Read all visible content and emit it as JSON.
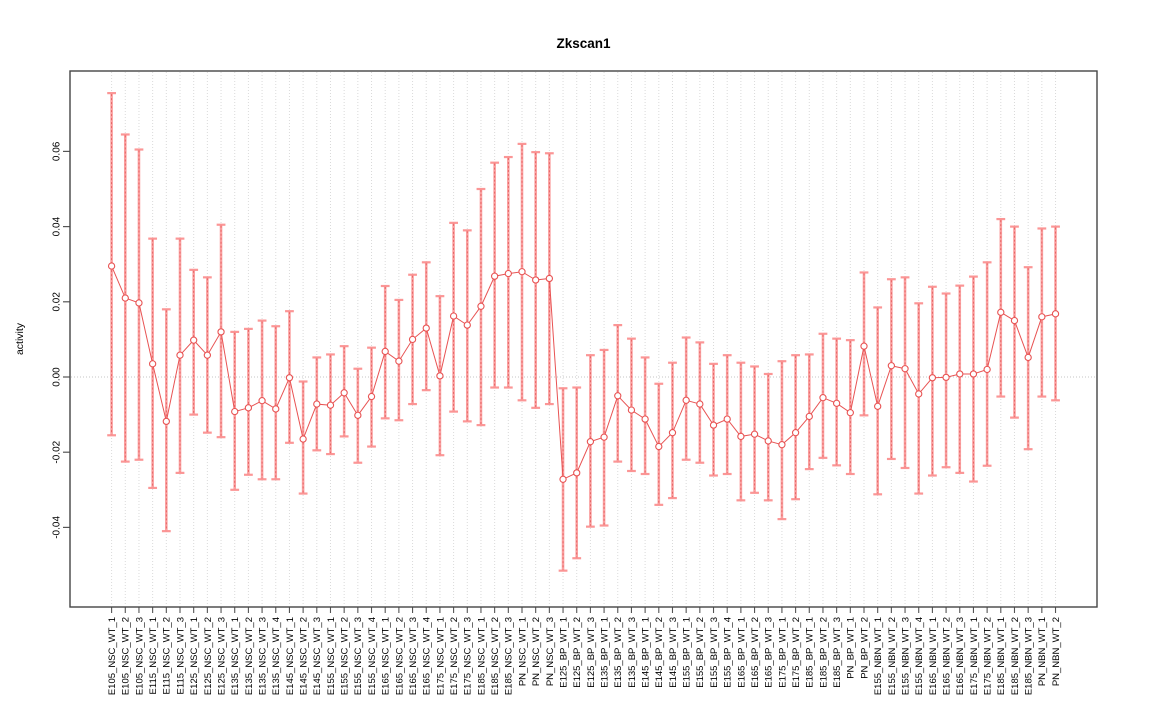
{
  "chart_data": {
    "type": "line",
    "title": "Zkscan1",
    "ylabel": "activity",
    "xlabel": "",
    "has_error_bars": true,
    "point_style": "open-circle",
    "grid": "vertical-dotted-per-category",
    "zero_reference_line": true,
    "legend": "none",
    "ylim": [
      -0.055,
      0.078
    ],
    "yticks": [
      0.06,
      0.04,
      0.02,
      0.0,
      -0.02,
      -0.04
    ],
    "ytick_labels": [
      "0.06",
      "0.04",
      "0.02",
      "0.00",
      "-0.02",
      "-0.04"
    ],
    "categories": [
      "E105_NSC_WT_1",
      "E105_NSC_WT_2",
      "E105_NSC_WT_3",
      "E115_NSC_WT_1",
      "E115_NSC_WT_2",
      "E115_NSC_WT_3",
      "E125_NSC_WT_1",
      "E125_NSC_WT_2",
      "E125_NSC_WT_3",
      "E135_NSC_WT_1",
      "E135_NSC_WT_2",
      "E135_NSC_WT_3",
      "E135_NSC_WT_4",
      "E145_NSC_WT_1",
      "E145_NSC_WT_2",
      "E145_NSC_WT_3",
      "E155_NSC_WT_1",
      "E155_NSC_WT_2",
      "E155_NSC_WT_3",
      "E155_NSC_WT_4",
      "E165_NSC_WT_1",
      "E165_NSC_WT_2",
      "E165_NSC_WT_3",
      "E165_NSC_WT_4",
      "E175_NSC_WT_1",
      "E175_NSC_WT_2",
      "E175_NSC_WT_3",
      "E185_NSC_WT_1",
      "E185_NSC_WT_2",
      "E185_NSC_WT_3",
      "PN_NSC_WT_1",
      "PN_NSC_WT_2",
      "PN_NSC_WT_3",
      "E125_BP_WT_1",
      "E125_BP_WT_2",
      "E125_BP_WT_3",
      "E135_BP_WT_1",
      "E135_BP_WT_2",
      "E135_BP_WT_3",
      "E145_BP_WT_1",
      "E145_BP_WT_2",
      "E145_BP_WT_3",
      "E155_BP_WT_1",
      "E155_BP_WT_2",
      "E155_BP_WT_3",
      "E155_BP_WT_4",
      "E165_BP_WT_1",
      "E165_BP_WT_2",
      "E165_BP_WT_3",
      "E175_BP_WT_1",
      "E175_BP_WT_2",
      "E185_BP_WT_1",
      "E185_BP_WT_2",
      "E185_BP_WT_3",
      "PN_BP_WT_1",
      "PN_BP_WT_2",
      "E155_NBN_WT_1",
      "E155_NBN_WT_2",
      "E155_NBN_WT_3",
      "E155_NBN_WT_4",
      "E165_NBN_WT_1",
      "E165_NBN_WT_2",
      "E165_NBN_WT_3",
      "E175_NBN_WT_1",
      "E175_NBN_WT_2",
      "E185_NBN_WT_1",
      "E185_NBN_WT_2",
      "E185_NBN_WT_3",
      "PN_NBN_WT_1",
      "PN_NBN_WT_2"
    ],
    "series": [
      {
        "name": "activity",
        "values": [
          0.0295,
          0.021,
          0.0197,
          0.0035,
          -0.0118,
          0.0058,
          0.0098,
          0.0058,
          0.012,
          -0.0092,
          -0.0082,
          -0.0063,
          -0.0085,
          -0.0002,
          -0.0165,
          -0.0072,
          -0.0075,
          -0.0042,
          -0.0102,
          -0.0052,
          0.0068,
          0.0042,
          0.01,
          0.013,
          0.0003,
          0.0162,
          0.0138,
          0.0188,
          0.0268,
          0.0275,
          0.028,
          0.0258,
          0.0262,
          -0.0272,
          -0.0255,
          -0.0172,
          -0.016,
          -0.005,
          -0.0088,
          -0.0112,
          -0.0185,
          -0.0148,
          -0.0062,
          -0.0072,
          -0.0128,
          -0.0112,
          -0.0158,
          -0.0152,
          -0.017,
          -0.018,
          -0.0148,
          -0.0105,
          -0.0055,
          -0.007,
          -0.0095,
          0.0082,
          -0.0078,
          0.003,
          0.0022,
          -0.0045,
          -0.0002,
          -0.0001,
          0.0008,
          0.0008,
          0.002,
          0.0172,
          0.015,
          0.0052,
          0.016,
          0.0168
        ],
        "lower": [
          -0.0155,
          -0.0225,
          -0.022,
          -0.0295,
          -0.041,
          -0.0255,
          -0.01,
          -0.0148,
          -0.016,
          -0.03,
          -0.026,
          -0.0272,
          -0.0272,
          -0.0175,
          -0.031,
          -0.0195,
          -0.0205,
          -0.0158,
          -0.0228,
          -0.0185,
          -0.011,
          -0.0115,
          -0.0072,
          -0.0035,
          -0.0208,
          -0.0092,
          -0.0118,
          -0.0128,
          -0.0028,
          -0.0028,
          -0.0062,
          -0.0082,
          -0.0072,
          -0.0515,
          -0.0482,
          -0.0398,
          -0.0395,
          -0.0225,
          -0.025,
          -0.0258,
          -0.034,
          -0.0322,
          -0.022,
          -0.0228,
          -0.0262,
          -0.0258,
          -0.0328,
          -0.0308,
          -0.0328,
          -0.0378,
          -0.0325,
          -0.0245,
          -0.0215,
          -0.0235,
          -0.0258,
          -0.0102,
          -0.0312,
          -0.0218,
          -0.0242,
          -0.031,
          -0.0262,
          -0.024,
          -0.0255,
          -0.0278,
          -0.0236,
          -0.0052,
          -0.0108,
          -0.0192,
          -0.0052,
          -0.0062
        ],
        "upper": [
          0.0755,
          0.0645,
          0.0605,
          0.0368,
          0.018,
          0.0368,
          0.0285,
          0.0265,
          0.0405,
          0.012,
          0.0128,
          0.015,
          0.0135,
          0.0175,
          -0.0012,
          0.0052,
          0.006,
          0.0082,
          0.0022,
          0.0078,
          0.0242,
          0.0205,
          0.0272,
          0.0305,
          0.0215,
          0.041,
          0.039,
          0.05,
          0.057,
          0.0585,
          0.062,
          0.0598,
          0.0595,
          -0.003,
          -0.0028,
          0.0058,
          0.0072,
          0.0138,
          0.0102,
          0.0052,
          -0.0018,
          0.0038,
          0.0105,
          0.0092,
          0.0035,
          0.0058,
          0.0038,
          0.0028,
          0.0008,
          0.0042,
          0.0058,
          0.006,
          0.0115,
          0.0102,
          0.0098,
          0.0278,
          0.0185,
          0.026,
          0.0265,
          0.0196,
          0.024,
          0.0222,
          0.0243,
          0.0267,
          0.0305,
          0.042,
          0.04,
          0.0292,
          0.0395,
          0.04
        ]
      }
    ],
    "colors": {
      "error_bar": "#fb9191",
      "error_bar_dash": "#e05252",
      "series_line": "#e85353",
      "point_stroke": "#e85353",
      "grid": "#dadada",
      "zero_line": "#c6c6c6",
      "axis_box": "#454545",
      "tick": "#555555",
      "text": "#000000"
    }
  }
}
